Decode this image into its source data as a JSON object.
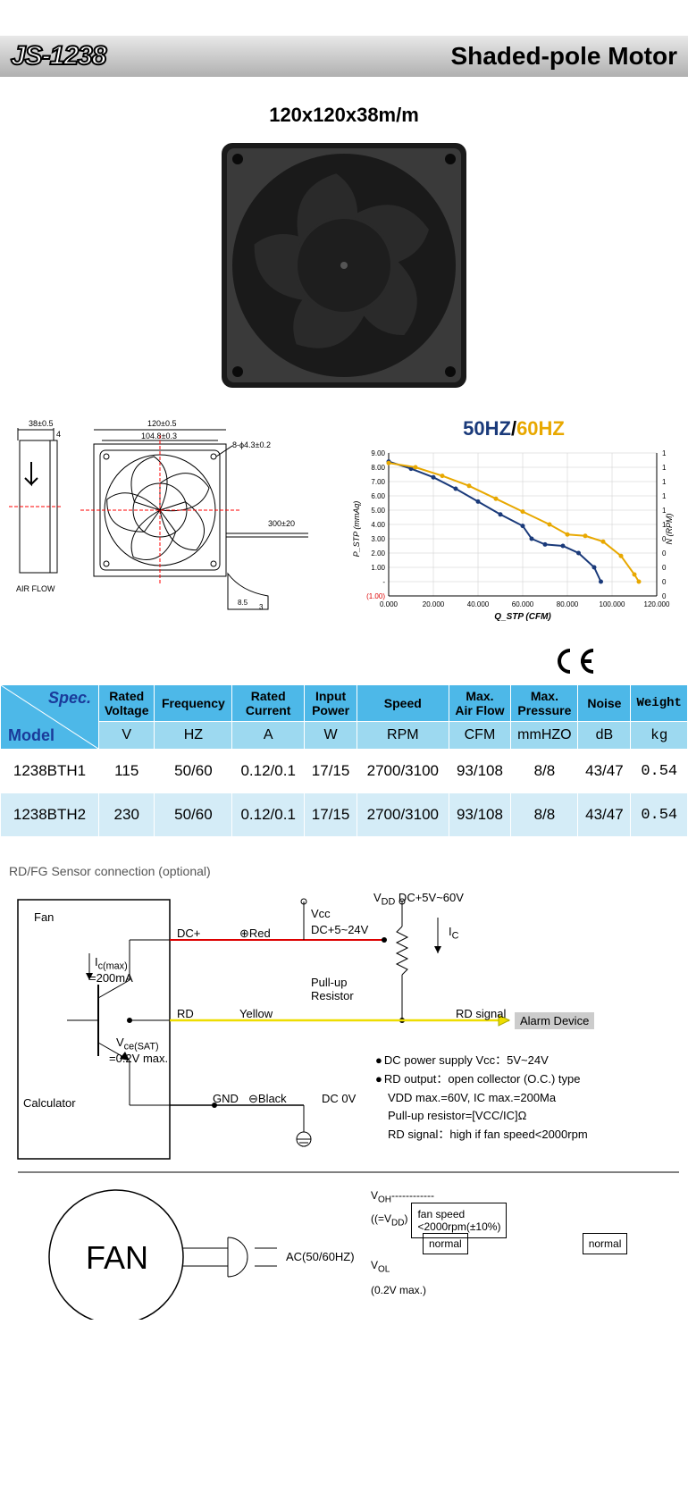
{
  "header": {
    "model": "JS-1238",
    "type": "Shaded-pole Motor"
  },
  "product": {
    "dimensions": "120x120x38m/m"
  },
  "chart": {
    "title_50": "50HZ",
    "title_sep": "/",
    "title_60": "60HZ",
    "x_label": "Q_STP (CFM)",
    "y_label_left": "P_STP (mmAq)",
    "y_label_right": "N (RPM)",
    "x_min": 0,
    "x_max": 120,
    "x_ticks": [
      "0.000",
      "20.000",
      "40.000",
      "60.000",
      "80.000",
      "100.000",
      "120.000"
    ],
    "y_ticks": [
      "(1.00)",
      "-",
      "1.00",
      "2.00",
      "3.00",
      "4.00",
      "5.00",
      "6.00",
      "7.00",
      "8.00",
      "9.00"
    ],
    "y2_ticks": [
      "0",
      "0",
      "0",
      "0",
      "0",
      "1",
      "1",
      "1",
      "1",
      "1",
      "1"
    ],
    "series_50": {
      "color": "#1a3a7a",
      "points": [
        [
          0,
          8.4
        ],
        [
          10,
          7.9
        ],
        [
          20,
          7.3
        ],
        [
          30,
          6.5
        ],
        [
          40,
          5.6
        ],
        [
          50,
          4.7
        ],
        [
          60,
          3.9
        ],
        [
          64,
          3.0
        ],
        [
          70,
          2.6
        ],
        [
          78,
          2.5
        ],
        [
          85,
          2.0
        ],
        [
          92,
          1.0
        ],
        [
          95,
          0
        ]
      ]
    },
    "series_60": {
      "color": "#e8a800",
      "points": [
        [
          0,
          8.3
        ],
        [
          12,
          8.0
        ],
        [
          24,
          7.4
        ],
        [
          36,
          6.7
        ],
        [
          48,
          5.8
        ],
        [
          60,
          4.9
        ],
        [
          72,
          4.0
        ],
        [
          80,
          3.3
        ],
        [
          88,
          3.2
        ],
        [
          96,
          2.8
        ],
        [
          104,
          1.8
        ],
        [
          110,
          0.5
        ],
        [
          112,
          0
        ]
      ]
    }
  },
  "tech_drawing": {
    "dims": {
      "depth": "38±0.5",
      "gap": "4",
      "width": "120±0.5",
      "inner": "104.8±0.3",
      "hole": "8-ϕ4.3±0.2",
      "lead": "300±20",
      "airflow": "AIR FLOW",
      "a": "8.5",
      "b": "3"
    }
  },
  "ce": "CE",
  "table": {
    "corner_spec": "Spec.",
    "corner_model": "Model",
    "headers1": [
      "Rated\nVoltage",
      "Frequency",
      "Rated\nCurrent",
      "Input\nPower",
      "Speed",
      "Max.\nAir Flow",
      "Max.\nPressure",
      "Noise",
      "Weight"
    ],
    "headers2": [
      "V",
      "HZ",
      "A",
      "W",
      "RPM",
      "CFM",
      "mmHZO",
      "dB",
      "kg"
    ],
    "rows": [
      [
        "1238BTH1",
        "115",
        "50/60",
        "0.12/0.1",
        "17/15",
        "2700/3100",
        "93/108",
        "8/8",
        "43/47",
        "0.54"
      ],
      [
        "1238BTH2",
        "230",
        "50/60",
        "0.12/0.1",
        "17/15",
        "2700/3100",
        "93/108",
        "8/8",
        "43/47",
        "0.54"
      ]
    ]
  },
  "sensor": {
    "title": "RD/FG Sensor connection (optional)",
    "labels": {
      "fan": "Fan",
      "dcp": "DC+",
      "red": "⊕Red",
      "vcc": "Vcc",
      "vcc_range": "DC+5~24V",
      "vdd": "V",
      "vdd_sub": "DD",
      "vdd_range": " DC+5V~60V",
      "ic": "I",
      "ic_sub": "C",
      "pullup": "Pull-up\nResistor",
      "icmax": "I",
      "icmax_sub": "c(max)",
      "icmax_val": "=200mA",
      "rd": "RD",
      "yellow": "Yellow",
      "rdsig": "RD signal",
      "alarm": "Alarm Device",
      "vcesat": "V",
      "vcesat_sub": "ce(SAT)",
      "vcesat_val": "=0.2V max.",
      "calc": "Calculator",
      "gnd": "GND",
      "black": "⊖Black",
      "dc0v": "DC 0V",
      "bigfan": "FAN",
      "ac": "AC(50/60HZ)"
    },
    "notes": [
      "DC power supply Vcc：5V~24V",
      "RD output：open collector (O.C.) type"
    ],
    "notes_sub": [
      "VDD max.=60V, IC max.=200Ma",
      "Pull-up resistor=[VCC/IC]Ω",
      "RD signal：high if fan speed<2000rpm"
    ],
    "timing": {
      "voh": "V",
      "voh_sub": "OH",
      "voh_eq": "(=V",
      "voh_eq_sub": "DD",
      "voh_eq2": ")",
      "vol": "V",
      "vol_sub": "OL",
      "vol_val": "(0.2V max.)",
      "fanspeed": "fan speed\n<2000rpm(±10%)",
      "normal": "normal"
    }
  }
}
